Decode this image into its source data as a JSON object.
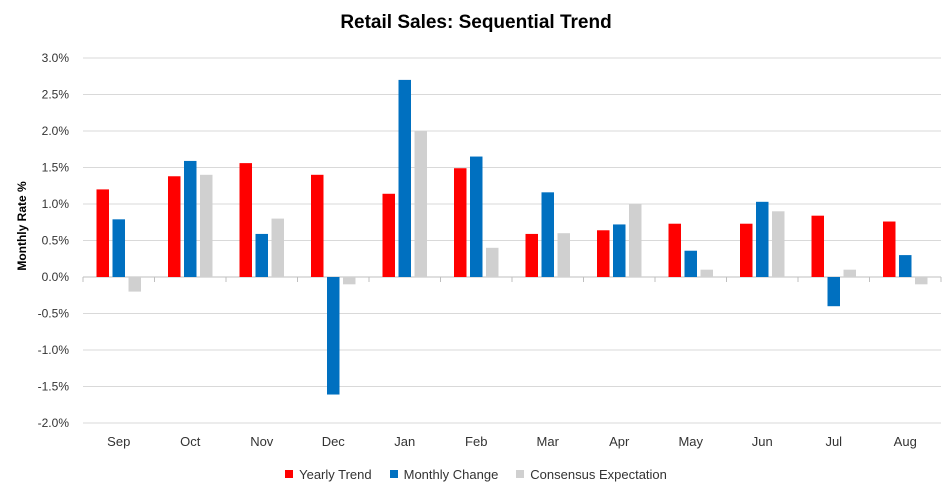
{
  "chart_data": {
    "type": "bar",
    "title": "Retail Sales: Sequential Trend",
    "xlabel": "",
    "ylabel": "Monthly Rate %",
    "ylim": [
      -2.0,
      3.0
    ],
    "yticks": [
      "3.0%",
      "2.5%",
      "2.0%",
      "1.5%",
      "1.0%",
      "0.5%",
      "0.0%",
      "-0.5%",
      "-1.0%",
      "-1.5%",
      "-2.0%"
    ],
    "ytick_values": [
      3.0,
      2.5,
      2.0,
      1.5,
      1.0,
      0.5,
      0.0,
      -0.5,
      -1.0,
      -1.5,
      -2.0
    ],
    "categories": [
      "Sep",
      "Oct",
      "Nov",
      "Dec",
      "Jan",
      "Feb",
      "Mar",
      "Apr",
      "May",
      "Jun",
      "Jul",
      "Aug"
    ],
    "series": [
      {
        "name": "Yearly Trend",
        "color": "#ff0000",
        "values": [
          1.2,
          1.38,
          1.56,
          1.4,
          1.14,
          1.49,
          0.59,
          0.64,
          0.73,
          0.73,
          0.84,
          0.76
        ]
      },
      {
        "name": "Monthly Change",
        "color": "#0070c0",
        "values": [
          0.79,
          1.59,
          0.59,
          -1.61,
          2.7,
          1.65,
          1.16,
          0.72,
          0.36,
          1.03,
          -0.4,
          0.3
        ]
      },
      {
        "name": "Consensus Expectation",
        "color": "#d0d0d0",
        "values": [
          -0.2,
          1.4,
          0.8,
          -0.1,
          2.0,
          0.4,
          0.6,
          1.0,
          0.1,
          0.9,
          0.1,
          -0.1
        ]
      }
    ],
    "grid": true,
    "legend": "bottom"
  }
}
